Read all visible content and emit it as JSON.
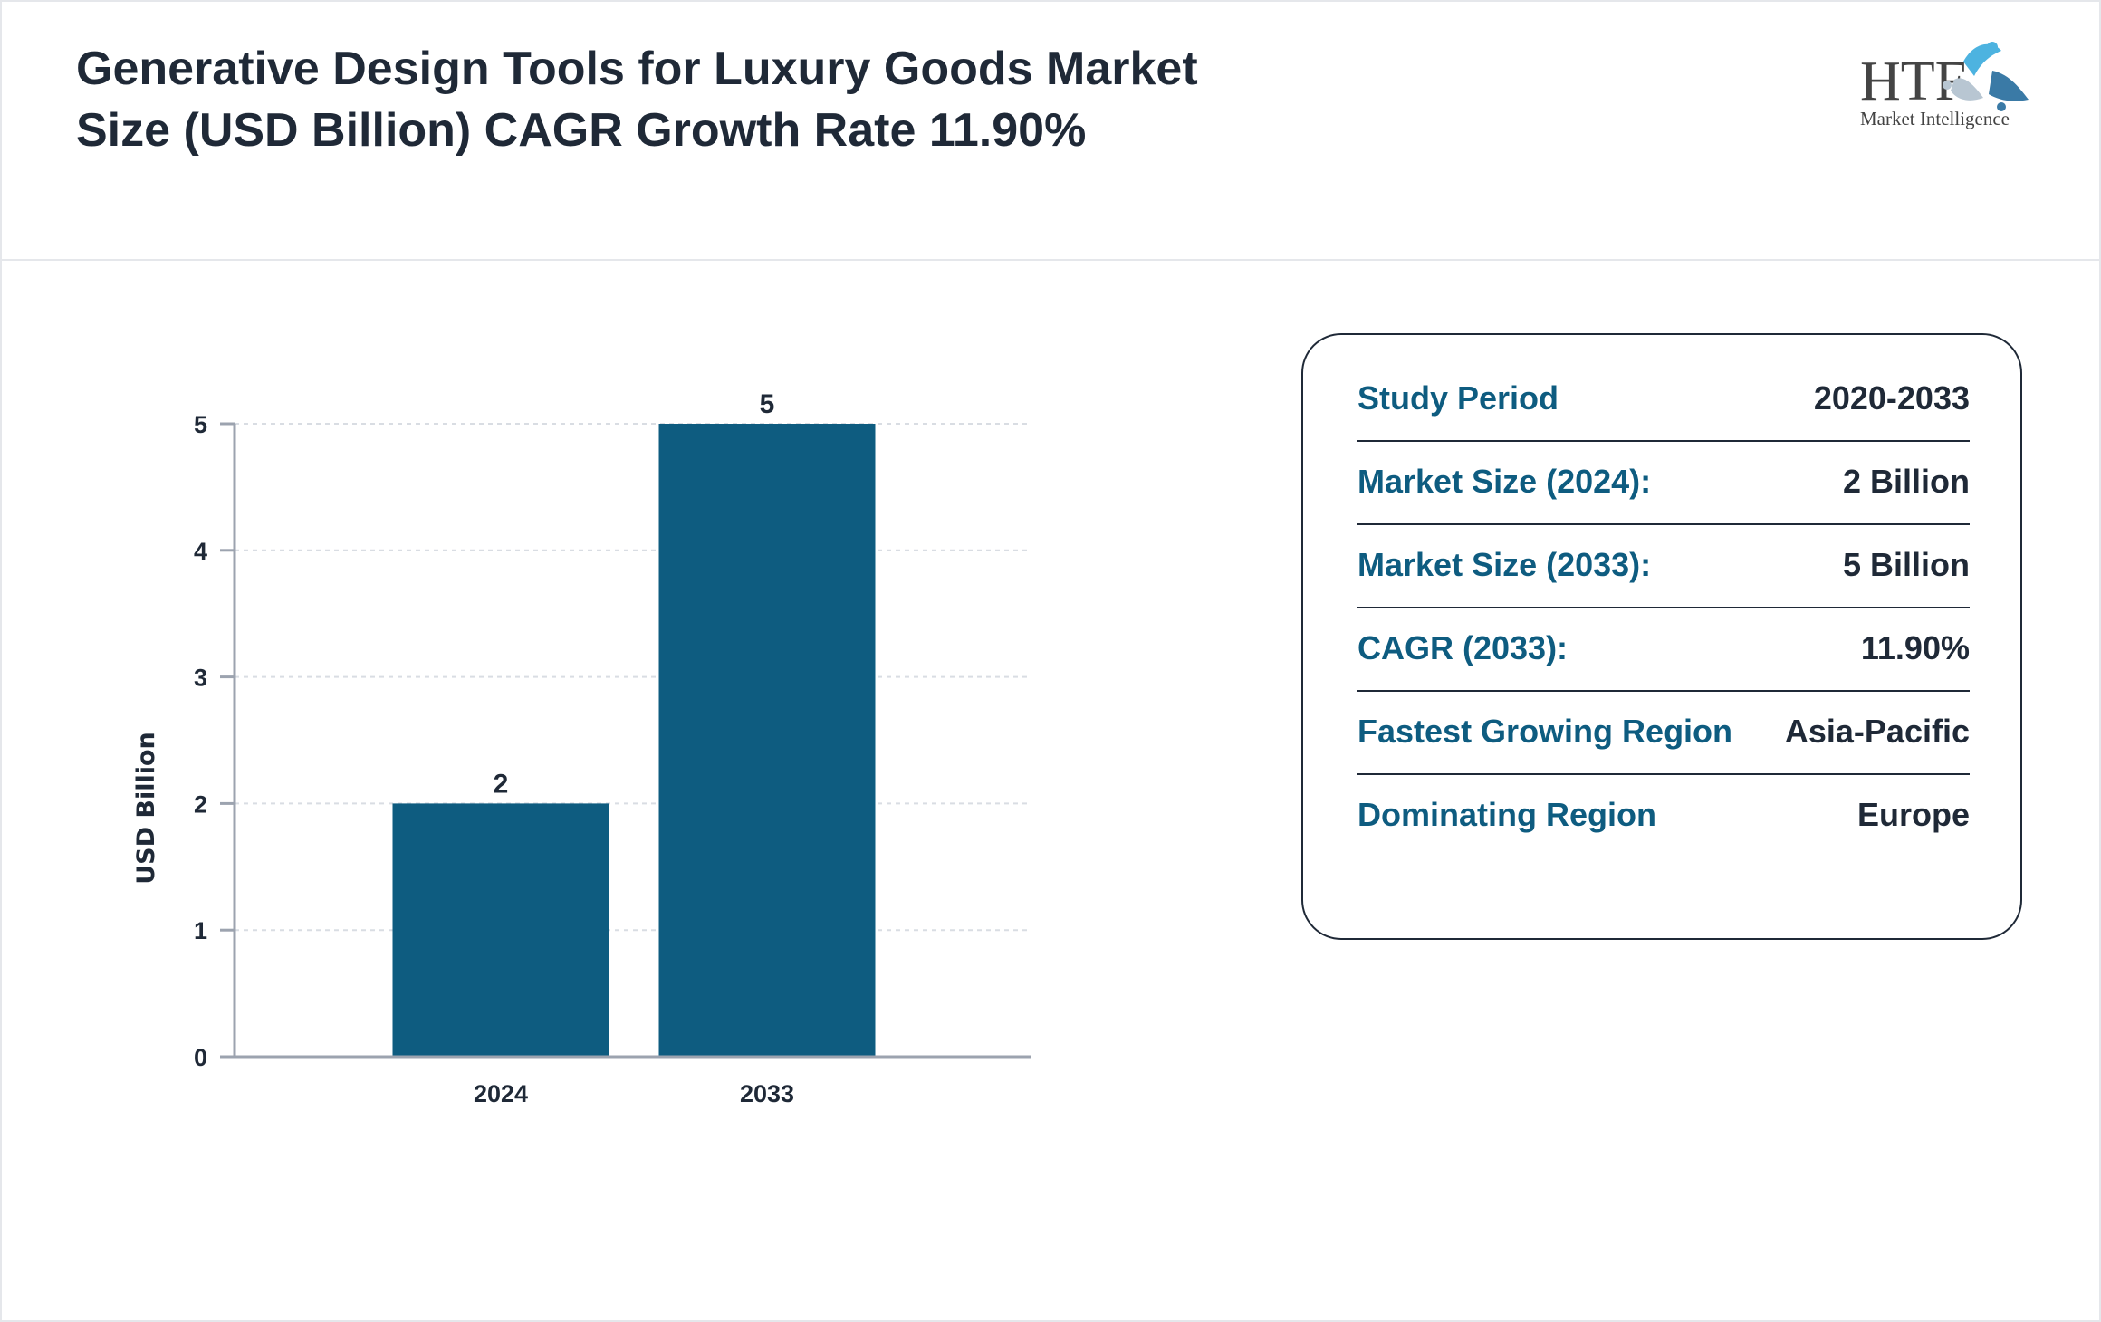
{
  "header": {
    "title": "Generative Design Tools for Luxury Goods Market Size (USD Billion) CAGR Growth Rate 11.90%",
    "logo_text": "HTF",
    "logo_subtext": "Market Intelligence"
  },
  "colors": {
    "bar": "#0e5c80",
    "label": "#0e5c80",
    "text": "#1f2937"
  },
  "chart_data": {
    "type": "bar",
    "categories": [
      "2024",
      "2033"
    ],
    "values": [
      2,
      5
    ],
    "data_labels": [
      "2",
      "5"
    ],
    "title": "",
    "xlabel": "",
    "ylabel": "USD Billion",
    "ylim": [
      0,
      5
    ],
    "yticks": [
      "0",
      "1",
      "2",
      "3",
      "4",
      "5"
    ],
    "grid": true
  },
  "info": {
    "rows": [
      {
        "label": "Study Period",
        "value": "2020-2033"
      },
      {
        "label": "Market Size (2024):",
        "value": "2 Billion"
      },
      {
        "label": "Market Size (2033):",
        "value": "5 Billion"
      },
      {
        "label": "CAGR (2033):",
        "value": "11.90%"
      },
      {
        "label": "Fastest Growing Region",
        "value": "Asia-Pacific"
      },
      {
        "label": "Dominating Region",
        "value": "Europe"
      }
    ]
  }
}
